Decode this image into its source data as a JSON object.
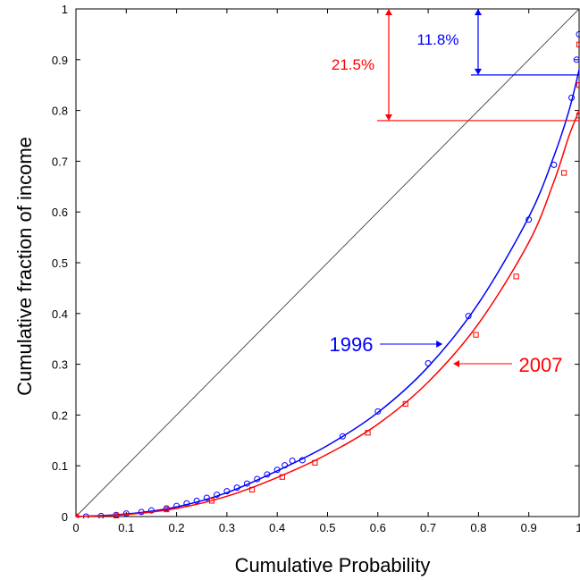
{
  "chart_data": {
    "type": "line",
    "xlabel": "Cumulative Probability",
    "ylabel": "Cumulative fraction of income",
    "xlim": [
      0,
      1
    ],
    "ylim": [
      0,
      1
    ],
    "xticks": [
      "0",
      "0.1",
      "0.2",
      "0.3",
      "0.4",
      "0.5",
      "0.6",
      "0.7",
      "0.8",
      "0.9",
      "1"
    ],
    "yticks": [
      "0",
      "0.1",
      "0.2",
      "0.3",
      "0.4",
      "0.5",
      "0.6",
      "0.7",
      "0.8",
      "0.9",
      "1"
    ],
    "grid": false,
    "series": [
      {
        "name": "1996",
        "color": "#0000ff",
        "marker": "circle",
        "points": [
          [
            0,
            0
          ],
          [
            0.02,
            0
          ],
          [
            0.05,
            0.001
          ],
          [
            0.08,
            0.003
          ],
          [
            0.1,
            0.006
          ],
          [
            0.13,
            0.009
          ],
          [
            0.15,
            0.012
          ],
          [
            0.18,
            0.016
          ],
          [
            0.2,
            0.021
          ],
          [
            0.22,
            0.026
          ],
          [
            0.24,
            0.031
          ],
          [
            0.26,
            0.037
          ],
          [
            0.28,
            0.043
          ],
          [
            0.3,
            0.05
          ],
          [
            0.32,
            0.057
          ],
          [
            0.34,
            0.065
          ],
          [
            0.36,
            0.074
          ],
          [
            0.38,
            0.083
          ],
          [
            0.4,
            0.092
          ],
          [
            0.415,
            0.101
          ],
          [
            0.43,
            0.11
          ],
          [
            0.45,
            0.111
          ],
          [
            0.53,
            0.158
          ],
          [
            0.6,
            0.207
          ],
          [
            0.7,
            0.302
          ],
          [
            0.78,
            0.395
          ],
          [
            0.9,
            0.585
          ],
          [
            0.95,
            0.693
          ],
          [
            0.985,
            0.825
          ],
          [
            0.995,
            0.9
          ],
          [
            1,
            0.95
          ]
        ],
        "fit": [
          [
            0,
            0
          ],
          [
            0.1,
            0.005
          ],
          [
            0.2,
            0.019
          ],
          [
            0.3,
            0.047
          ],
          [
            0.4,
            0.09
          ],
          [
            0.5,
            0.14
          ],
          [
            0.6,
            0.205
          ],
          [
            0.7,
            0.295
          ],
          [
            0.8,
            0.42
          ],
          [
            0.9,
            0.59
          ],
          [
            0.95,
            0.71
          ],
          [
            0.98,
            0.8
          ],
          [
            1,
            0.88
          ]
        ]
      },
      {
        "name": "2007",
        "color": "#ff0000",
        "marker": "square",
        "points": [
          [
            0,
            0
          ],
          [
            0.08,
            0.002
          ],
          [
            0.18,
            0.014
          ],
          [
            0.27,
            0.031
          ],
          [
            0.35,
            0.053
          ],
          [
            0.41,
            0.078
          ],
          [
            0.475,
            0.106
          ],
          [
            0.58,
            0.165
          ],
          [
            0.655,
            0.222
          ],
          [
            0.795,
            0.358
          ],
          [
            0.875,
            0.473
          ],
          [
            0.97,
            0.677
          ],
          [
            1,
            0.79
          ],
          [
            1,
            0.85
          ],
          [
            1,
            0.93
          ]
        ],
        "fit": [
          [
            0,
            0
          ],
          [
            0.1,
            0.004
          ],
          [
            0.2,
            0.016
          ],
          [
            0.3,
            0.04
          ],
          [
            0.4,
            0.077
          ],
          [
            0.5,
            0.123
          ],
          [
            0.6,
            0.182
          ],
          [
            0.7,
            0.265
          ],
          [
            0.8,
            0.38
          ],
          [
            0.9,
            0.54
          ],
          [
            0.95,
            0.66
          ],
          [
            0.98,
            0.75
          ],
          [
            1,
            0.8
          ]
        ]
      }
    ],
    "reference_line": {
      "from": [
        0,
        0
      ],
      "to": [
        1,
        1
      ],
      "color": "#404040"
    },
    "annotations": {
      "pct_2007": {
        "text": "21.5%",
        "color": "#ff0000",
        "y_top": 1.0,
        "y_bottom": 0.78,
        "x": 0.62
      },
      "pct_1996": {
        "text": "11.8%",
        "color": "#0000ff",
        "y_top": 1.0,
        "y_bottom": 0.87,
        "x": 0.795
      },
      "label_1996": {
        "text": "1996",
        "color": "#0000ff",
        "arrow_to": [
          0.725,
          0.34
        ]
      },
      "label_2007": {
        "text": "2007",
        "color": "#ff0000",
        "arrow_to": [
          0.755,
          0.3
        ]
      }
    }
  }
}
